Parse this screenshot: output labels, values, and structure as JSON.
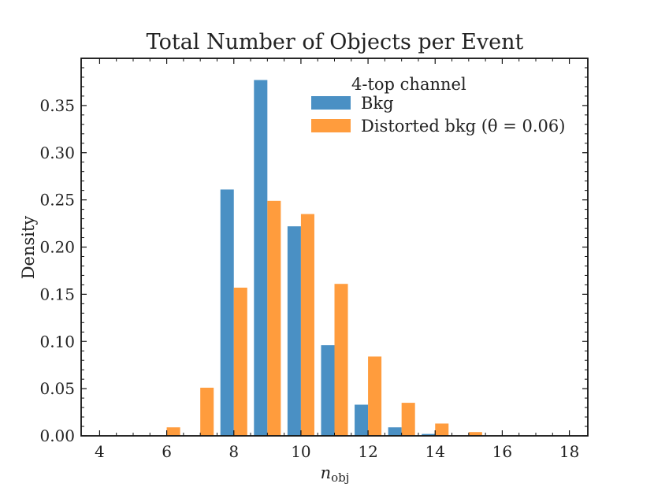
{
  "chart_data": {
    "type": "bar",
    "title": "Total Number of Objects per Event",
    "xlabel_main": "n",
    "xlabel_sub": "obj",
    "ylabel": "Density",
    "xlim": [
      3.45,
      18.55
    ],
    "ylim": [
      0,
      0.4
    ],
    "xticks": [
      4,
      6,
      8,
      10,
      12,
      14,
      16,
      18
    ],
    "yticks": [
      0.0,
      0.05,
      0.1,
      0.15,
      0.2,
      0.25,
      0.3,
      0.35
    ],
    "ytick_labels": [
      "0.00",
      "0.05",
      "0.10",
      "0.15",
      "0.20",
      "0.25",
      "0.30",
      "0.35"
    ],
    "legend_title": "4-top channel",
    "legend_position": "top-right",
    "bar_width": 0.4,
    "series": [
      {
        "name": "Bkg",
        "color": "#4a90c4",
        "offset": -0.2,
        "x": [
          4,
          5,
          6,
          7,
          8,
          9,
          10,
          11,
          12,
          13,
          14,
          15,
          16,
          17,
          18
        ],
        "values": [
          0,
          0,
          0,
          0,
          0.261,
          0.377,
          0.222,
          0.096,
          0.033,
          0.009,
          0.002,
          0,
          0,
          0,
          0
        ]
      },
      {
        "name": "Distorted bkg (θ = 0.06)",
        "color": "#ff9c3d",
        "offset": 0.2,
        "x": [
          4,
          5,
          6,
          7,
          8,
          9,
          10,
          11,
          12,
          13,
          14,
          15,
          16,
          17,
          18
        ],
        "values": [
          0,
          0,
          0.009,
          0.051,
          0.157,
          0.249,
          0.235,
          0.161,
          0.084,
          0.035,
          0.013,
          0.004,
          0,
          0,
          0
        ]
      }
    ]
  }
}
